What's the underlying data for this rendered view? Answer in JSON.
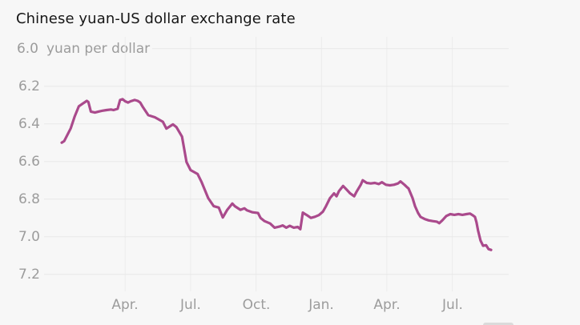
{
  "chart_data": {
    "type": "line",
    "title": "Chinese yuan-US dollar exchange rate",
    "line_color": "#aa4a8c",
    "background_color": "#f7f7f7",
    "grid_color_horizontal": "#e8e8e8",
    "grid_color_vertical": "#ececec",
    "label_color": "#9c9c9c",
    "title_color": "#161616",
    "legend": "none",
    "grid": "on",
    "y_axis": {
      "min": 6.0,
      "max": 7.2,
      "inverted": true,
      "top_label": "6.0",
      "unit": "yuan per dollar",
      "ticks": [
        6.0,
        6.2,
        6.4,
        6.6,
        6.8,
        7.0,
        7.2
      ],
      "tick_labels": [
        "6.0",
        "6.2",
        "6.4",
        "6.6",
        "6.8",
        "7.0",
        "7.2"
      ]
    },
    "x_axis": {
      "tick_labels": [
        "Apr.",
        "Jul.",
        "Oct.",
        "Jan.",
        "Apr.",
        "Jul."
      ],
      "tick_weeks": [
        12.6,
        25.6,
        38.6,
        51.6,
        64.6,
        77.6
      ],
      "range_weeks": [
        0,
        85.3
      ]
    },
    "series": [
      {
        "name": "Chinese yuan per US dollar",
        "points": [
          [
            0,
            6.5
          ],
          [
            0.5,
            6.492
          ],
          [
            1.8,
            6.424
          ],
          [
            2.6,
            6.36
          ],
          [
            3.4,
            6.307
          ],
          [
            4.2,
            6.292
          ],
          [
            5,
            6.278
          ],
          [
            5.3,
            6.284
          ],
          [
            5.8,
            6.335
          ],
          [
            6.6,
            6.34
          ],
          [
            7.3,
            6.335
          ],
          [
            8.1,
            6.33
          ],
          [
            8.9,
            6.327
          ],
          [
            9.8,
            6.324
          ],
          [
            10.3,
            6.327
          ],
          [
            11.1,
            6.32
          ],
          [
            11.6,
            6.273
          ],
          [
            12.1,
            6.269
          ],
          [
            12.6,
            6.28
          ],
          [
            13.2,
            6.287
          ],
          [
            13.7,
            6.28
          ],
          [
            14.5,
            6.273
          ],
          [
            15.1,
            6.278
          ],
          [
            15.6,
            6.287
          ],
          [
            16.1,
            6.31
          ],
          [
            17.2,
            6.354
          ],
          [
            18.5,
            6.365
          ],
          [
            20.1,
            6.389
          ],
          [
            20.8,
            6.425
          ],
          [
            22.1,
            6.403
          ],
          [
            22.8,
            6.418
          ],
          [
            23.9,
            6.468
          ],
          [
            24.8,
            6.603
          ],
          [
            25.6,
            6.646
          ],
          [
            27,
            6.667
          ],
          [
            27.8,
            6.71
          ],
          [
            29.1,
            6.795
          ],
          [
            30.2,
            6.838
          ],
          [
            31.2,
            6.845
          ],
          [
            32,
            6.898
          ],
          [
            32.9,
            6.857
          ],
          [
            33.9,
            6.824
          ],
          [
            34.4,
            6.838
          ],
          [
            35.5,
            6.857
          ],
          [
            36.3,
            6.849
          ],
          [
            36.8,
            6.86
          ],
          [
            37.9,
            6.87
          ],
          [
            39,
            6.874
          ],
          [
            39.5,
            6.9
          ],
          [
            40.3,
            6.917
          ],
          [
            41.4,
            6.93
          ],
          [
            42.3,
            6.952
          ],
          [
            43.4,
            6.945
          ],
          [
            43.9,
            6.94
          ],
          [
            44.6,
            6.952
          ],
          [
            45.3,
            6.942
          ],
          [
            46.1,
            6.952
          ],
          [
            46.9,
            6.948
          ],
          [
            47.4,
            6.96
          ],
          [
            47.9,
            6.872
          ],
          [
            48.7,
            6.885
          ],
          [
            49.5,
            6.9
          ],
          [
            50.3,
            6.894
          ],
          [
            51.1,
            6.885
          ],
          [
            51.9,
            6.867
          ],
          [
            52.5,
            6.838
          ],
          [
            53.3,
            6.795
          ],
          [
            54.1,
            6.77
          ],
          [
            54.6,
            6.785
          ],
          [
            55.1,
            6.757
          ],
          [
            55.9,
            6.73
          ],
          [
            56.6,
            6.75
          ],
          [
            57.3,
            6.77
          ],
          [
            58.1,
            6.785
          ],
          [
            58.6,
            6.76
          ],
          [
            59.4,
            6.724
          ],
          [
            59.8,
            6.7
          ],
          [
            60.6,
            6.714
          ],
          [
            61.4,
            6.717
          ],
          [
            62.2,
            6.714
          ],
          [
            63,
            6.72
          ],
          [
            63.6,
            6.71
          ],
          [
            64.4,
            6.724
          ],
          [
            65.2,
            6.727
          ],
          [
            66,
            6.724
          ],
          [
            66.8,
            6.717
          ],
          [
            67.3,
            6.706
          ],
          [
            68.1,
            6.724
          ],
          [
            68.6,
            6.737
          ],
          [
            68.9,
            6.744
          ],
          [
            69.7,
            6.795
          ],
          [
            70.2,
            6.838
          ],
          [
            70.8,
            6.874
          ],
          [
            71.3,
            6.895
          ],
          [
            72.1,
            6.906
          ],
          [
            72.9,
            6.913
          ],
          [
            73.7,
            6.917
          ],
          [
            74.5,
            6.92
          ],
          [
            75,
            6.928
          ],
          [
            75.6,
            6.913
          ],
          [
            76.4,
            6.89
          ],
          [
            77.2,
            6.88
          ],
          [
            78,
            6.884
          ],
          [
            78.8,
            6.88
          ],
          [
            79.6,
            6.884
          ],
          [
            80.4,
            6.88
          ],
          [
            81.1,
            6.877
          ],
          [
            81.6,
            6.885
          ],
          [
            82.1,
            6.895
          ],
          [
            82.4,
            6.924
          ],
          [
            82.7,
            6.966
          ],
          [
            83.2,
            7.02
          ],
          [
            83.7,
            7.048
          ],
          [
            84.3,
            7.045
          ],
          [
            84.8,
            7.066
          ],
          [
            85.3,
            7.07
          ]
        ]
      }
    ]
  }
}
